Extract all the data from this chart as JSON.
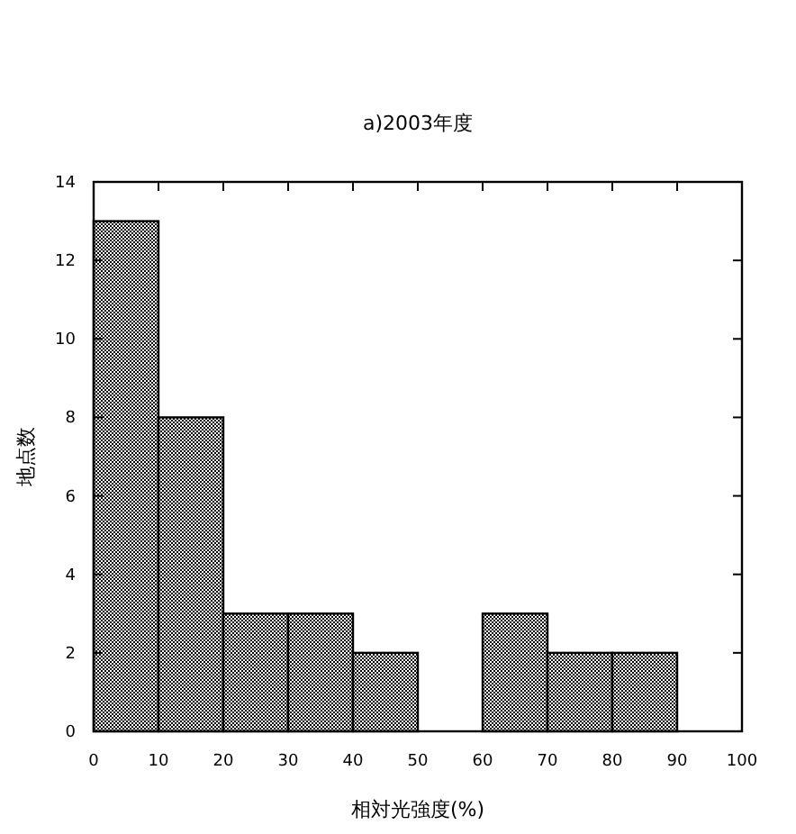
{
  "chart_data": {
    "type": "histogram",
    "title": "a)2003年度",
    "xlabel": "相対光強度(%)",
    "ylabel": "地点数",
    "bins": [
      0,
      10,
      20,
      30,
      40,
      50,
      60,
      70,
      80,
      90,
      100
    ],
    "values": [
      13,
      8,
      3,
      3,
      2,
      0,
      3,
      2,
      2,
      0
    ],
    "color": "#000000",
    "xlim": [
      0,
      100
    ],
    "xticks": [
      0,
      10,
      20,
      30,
      40,
      50,
      60,
      70,
      80,
      90,
      100
    ],
    "ylim": [
      0,
      14
    ],
    "yticks": [
      0,
      2,
      4,
      6,
      8,
      10,
      12,
      14
    ],
    "grid": false
  }
}
